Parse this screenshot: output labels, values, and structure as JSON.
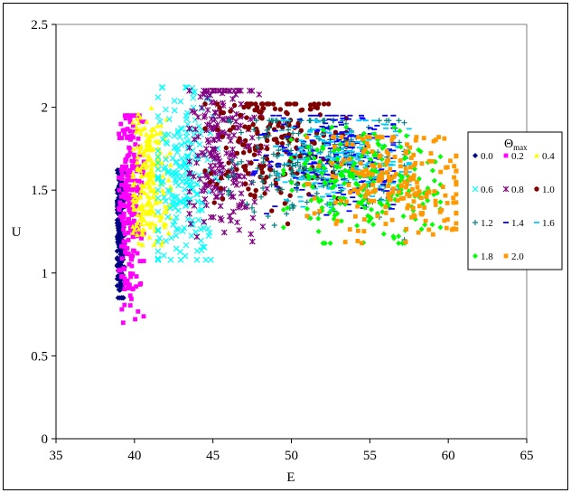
{
  "chart_data": {
    "type": "scatter",
    "xlabel": "E",
    "ylabel": "U",
    "xlim": [
      35,
      65
    ],
    "ylim": [
      0,
      2.5
    ],
    "x_ticks": [
      "35",
      "40",
      "45",
      "50",
      "55",
      "60",
      "65"
    ],
    "y_ticks": [
      "0",
      "0.5",
      "1",
      "1.5",
      "2",
      "2.5"
    ],
    "grid": false,
    "legend_title": "Θmax",
    "legend_title_base": "Θ",
    "legend_title_sub": "max",
    "legend_placement": "right",
    "series": [
      {
        "name": "0.0",
        "color": "#000080",
        "marker": "diamond",
        "x_range": [
          38.9,
          39.4
        ],
        "y_range": [
          0.85,
          1.62
        ],
        "x_peak": 39.1,
        "y_peak": 1.25
      },
      {
        "name": "0.2",
        "color": "#ff00ff",
        "marker": "square",
        "x_range": [
          39.0,
          40.6
        ],
        "y_range": [
          0.7,
          1.95
        ],
        "x_peak": 39.7,
        "y_peak": 1.4
      },
      {
        "name": "0.4",
        "color": "#ffff00",
        "marker": "triangle",
        "x_range": [
          39.9,
          42.3
        ],
        "y_range": [
          1.17,
          2.05
        ],
        "x_peak": 41.0,
        "y_peak": 1.55
      },
      {
        "name": "0.6",
        "color": "#00ffff",
        "marker": "x",
        "x_range": [
          41.5,
          45.7
        ],
        "y_range": [
          1.08,
          2.12
        ],
        "x_peak": 43.2,
        "y_peak": 1.6
      },
      {
        "name": "0.8",
        "color": "#800080",
        "marker": "asterisk",
        "x_range": [
          43.5,
          48.6
        ],
        "y_range": [
          1.1,
          2.1
        ],
        "x_peak": 45.5,
        "y_peak": 1.75
      },
      {
        "name": "1.0",
        "color": "#800000",
        "marker": "circle",
        "x_range": [
          44.5,
          53.5
        ],
        "y_range": [
          1.25,
          2.02
        ],
        "x_peak": 49.0,
        "y_peak": 1.8
      },
      {
        "name": "1.2",
        "color": "#008080",
        "marker": "plus",
        "x_range": [
          46.0,
          57.2
        ],
        "y_range": [
          1.2,
          1.92
        ],
        "x_peak": 51.5,
        "y_peak": 1.7
      },
      {
        "name": "1.4",
        "color": "#0000ff",
        "marker": "dash",
        "x_range": [
          47.5,
          56.5
        ],
        "y_range": [
          1.35,
          1.95
        ],
        "x_peak": 53.0,
        "y_peak": 1.7
      },
      {
        "name": "1.6",
        "color": "#00ccff",
        "marker": "dash",
        "x_range": [
          49.0,
          57.5
        ],
        "y_range": [
          1.35,
          1.92
        ],
        "x_peak": 53.5,
        "y_peak": 1.68
      },
      {
        "name": "1.8",
        "color": "#00ff00",
        "marker": "diamond",
        "x_range": [
          49.5,
          59.5
        ],
        "y_range": [
          1.18,
          1.88
        ],
        "x_peak": 55.0,
        "y_peak": 1.55
      },
      {
        "name": "2.0",
        "color": "#ff9900",
        "marker": "square",
        "x_range": [
          51.0,
          60.5
        ],
        "y_range": [
          1.18,
          1.82
        ],
        "x_peak": 56.5,
        "y_peak": 1.55
      }
    ]
  }
}
